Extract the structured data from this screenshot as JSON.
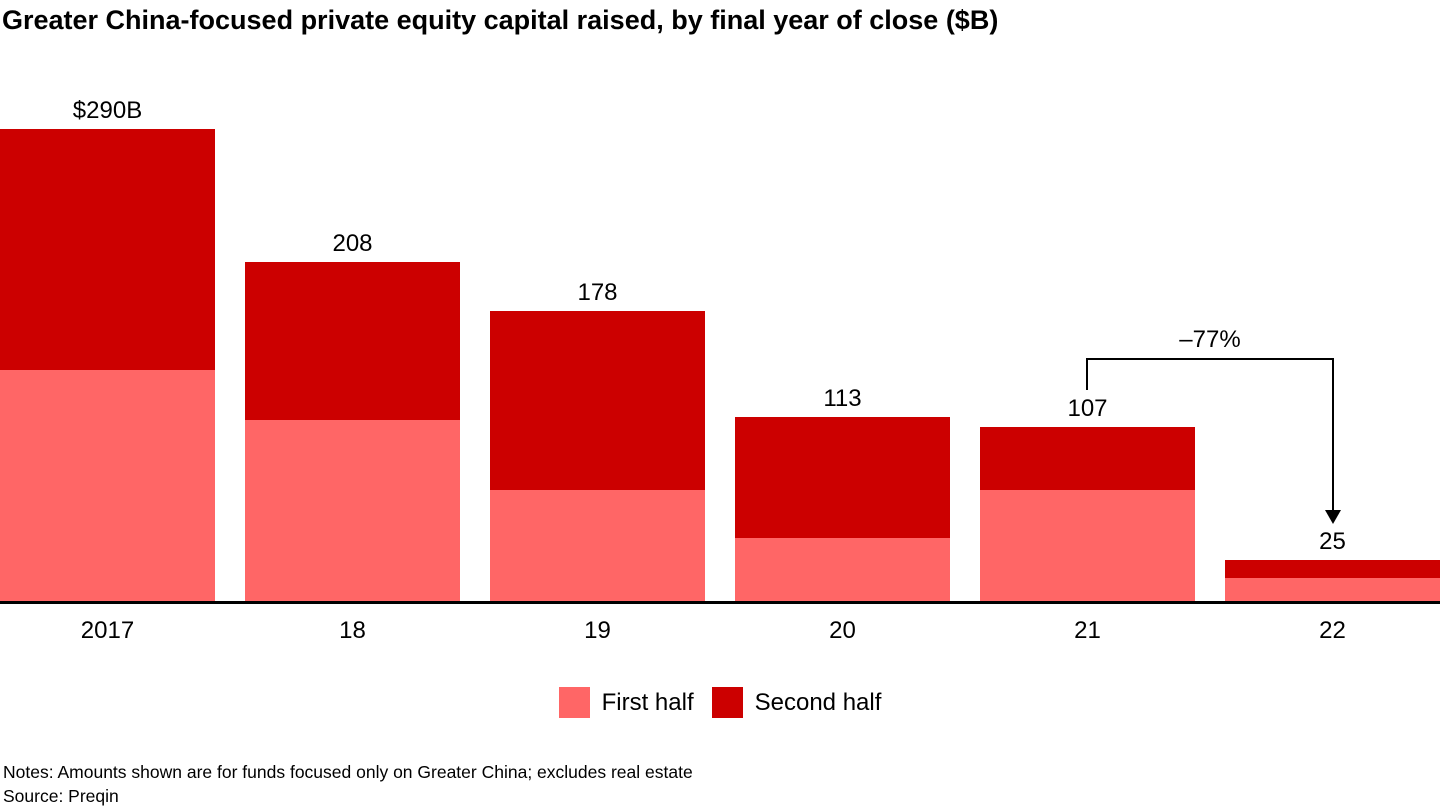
{
  "title": "Greater China-focused private equity capital raised, by final year of close ($B)",
  "chart_data": {
    "type": "bar",
    "stacked": true,
    "title": "Greater China-focused private equity capital raised, by final year of close ($B)",
    "categories": [
      "2017",
      "18",
      "19",
      "20",
      "21",
      "22"
    ],
    "series": [
      {
        "name": "First half",
        "color": "#ff6666",
        "values": [
          142,
          111,
          68,
          39,
          68,
          14
        ]
      },
      {
        "name": "Second half",
        "color": "#cc0000",
        "values": [
          148,
          97,
          110,
          74,
          39,
          11
        ]
      }
    ],
    "totals": [
      290,
      208,
      178,
      113,
      107,
      25
    ],
    "total_labels": [
      "$290B",
      "208",
      "178",
      "113",
      "107",
      "25"
    ],
    "unit": "$B",
    "ylim": [
      0,
      290
    ],
    "grid": false,
    "legend_position": "bottom",
    "annotation": {
      "text": "–77%",
      "from_category": "21",
      "to_category": "22"
    }
  },
  "legend": {
    "items": [
      {
        "label": "First half",
        "color": "#ff6666"
      },
      {
        "label": "Second half",
        "color": "#cc0000"
      }
    ]
  },
  "footnotes": {
    "notes": "Notes: Amounts shown are for funds focused only on Greater China; excludes real estate",
    "source": "Source: Preqin"
  },
  "colors": {
    "first_half": "#ff6666",
    "second_half": "#cc0000",
    "axis": "#000000",
    "text": "#000000"
  }
}
